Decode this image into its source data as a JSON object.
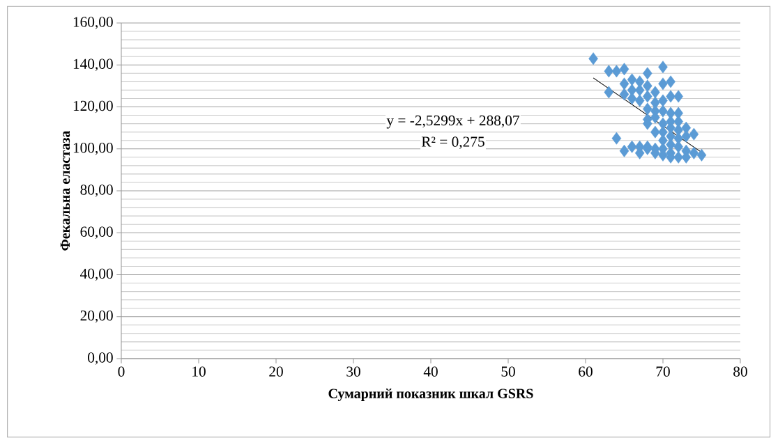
{
  "chart_data": {
    "type": "scatter",
    "xlabel": "Сумарний показник шкал GSRS",
    "ylabel": "Фекальна еластаза",
    "xlim": [
      0,
      80
    ],
    "xticks": [
      0,
      10,
      20,
      30,
      40,
      50,
      60,
      70,
      80
    ],
    "ylim": [
      0,
      160
    ],
    "yticks": [
      {
        "value": 0,
        "label": "0,00"
      },
      {
        "value": 20,
        "label": "20,00"
      },
      {
        "value": 40,
        "label": "40,00"
      },
      {
        "value": 60,
        "label": "60,00"
      },
      {
        "value": 80,
        "label": "80,00"
      },
      {
        "value": 100,
        "label": "100,00"
      },
      {
        "value": 120,
        "label": "120,00"
      },
      {
        "value": 140,
        "label": "140,00"
      },
      {
        "value": 160,
        "label": "160,00"
      }
    ],
    "grid": "y",
    "annotations": [
      "y = -2,5299x + 288,07",
      "R² = 0,275"
    ],
    "series": [
      {
        "marker": "diamond",
        "color": "#5b9bd5",
        "x": [
          61,
          63,
          63,
          64,
          64,
          65,
          65,
          65,
          65,
          66,
          66,
          66,
          66,
          67,
          67,
          67,
          67,
          67,
          68,
          68,
          68,
          68,
          68,
          68,
          68,
          68,
          69,
          69,
          69,
          69,
          69,
          69,
          69,
          70,
          70,
          70,
          70,
          70,
          70,
          70,
          70,
          70,
          71,
          71,
          71,
          71,
          71,
          71,
          71,
          71,
          71,
          72,
          72,
          72,
          72,
          72,
          72,
          72,
          73,
          73,
          73,
          73,
          74,
          74,
          75
        ],
        "values": [
          143,
          137,
          127,
          137,
          105,
          138,
          131,
          126,
          99,
          133,
          128,
          101,
          124,
          132,
          128,
          123,
          101,
          98,
          136,
          130,
          125,
          119,
          114,
          112,
          101,
          100,
          127,
          122,
          118,
          115,
          108,
          100,
          98,
          139,
          131,
          123,
          118,
          112,
          108,
          104,
          100,
          97,
          132,
          125,
          117,
          113,
          110,
          106,
          102,
          98,
          96,
          125,
          117,
          113,
          109,
          105,
          101,
          96,
          110,
          106,
          99,
          96,
          107,
          98,
          97
        ]
      },
      {
        "type": "line",
        "marker": "none",
        "color": "#000000",
        "x": [
          61,
          75
        ],
        "values": [
          133.8,
          98.3
        ]
      }
    ]
  }
}
